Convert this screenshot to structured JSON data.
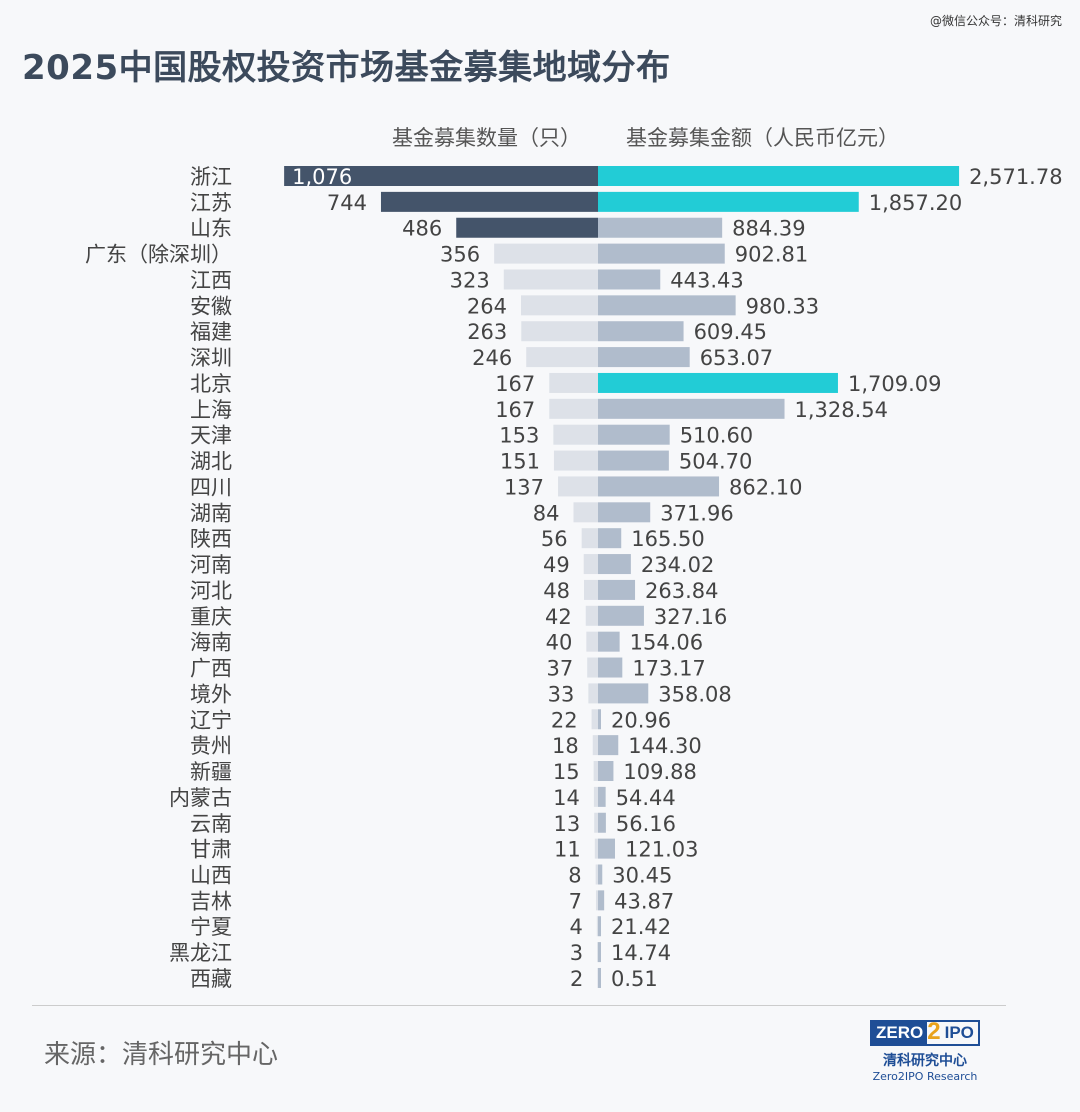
{
  "watermark": "@微信公众号：清科研究",
  "title": "2025中国股权投资市场基金募集地域分布",
  "source": "来源：清科研究中心",
  "logo": {
    "top_left": "ZERO",
    "top_mid": "2",
    "top_right": "IPO",
    "cn": "清科研究中心",
    "en": "Zero2IPO Research"
  },
  "colors": {
    "dark": "#44546a",
    "cyan": "#22ccd6",
    "light_left": "#dde1e8",
    "light_right": "#b0bccc"
  },
  "chart_data": {
    "type": "bar",
    "title": "2025中国股权投资市场基金募集地域分布",
    "left_series_name": "基金募集数量（只）",
    "right_series_name": "基金募集金额（人民币亿元）",
    "categories": [
      "浙江",
      "江苏",
      "山东",
      "广东（除深圳）",
      "江西",
      "安徽",
      "福建",
      "深圳",
      "北京",
      "上海",
      "天津",
      "湖北",
      "四川",
      "湖南",
      "陕西",
      "河南",
      "河北",
      "重庆",
      "海南",
      "广西",
      "境外",
      "辽宁",
      "贵州",
      "新疆",
      "内蒙古",
      "云南",
      "甘肃",
      "山西",
      "吉林",
      "宁夏",
      "黑龙江",
      "西藏"
    ],
    "counts": [
      1076,
      744,
      486,
      356,
      323,
      264,
      263,
      246,
      167,
      167,
      153,
      151,
      137,
      84,
      56,
      49,
      48,
      42,
      40,
      37,
      33,
      22,
      18,
      15,
      14,
      13,
      11,
      8,
      7,
      4,
      3,
      2
    ],
    "count_labels": [
      "1,076",
      "744",
      "486",
      "356",
      "323",
      "264",
      "263",
      "246",
      "167",
      "167",
      "153",
      "151",
      "137",
      "84",
      "56",
      "49",
      "48",
      "42",
      "40",
      "37",
      "33",
      "22",
      "18",
      "15",
      "14",
      "13",
      "11",
      "8",
      "7",
      "4",
      "3",
      "2"
    ],
    "amounts": [
      2571.78,
      1857.2,
      884.39,
      902.81,
      443.43,
      980.33,
      609.45,
      653.07,
      1709.09,
      1328.54,
      510.6,
      504.7,
      862.1,
      371.96,
      165.5,
      234.02,
      263.84,
      327.16,
      154.06,
      173.17,
      358.08,
      20.96,
      144.3,
      109.88,
      54.44,
      56.16,
      121.03,
      30.45,
      43.87,
      21.42,
      14.74,
      0.51
    ],
    "amount_labels": [
      "2,571.78",
      "1,857.20",
      "884.39",
      "902.81",
      "443.43",
      "980.33",
      "609.45",
      "653.07",
      "1,709.09",
      "1,328.54",
      "510.60",
      "504.70",
      "862.10",
      "371.96",
      "165.50",
      "234.02",
      "263.84",
      "327.16",
      "154.06",
      "173.17",
      "358.08",
      "20.96",
      "144.30",
      "109.88",
      "54.44",
      "56.16",
      "121.03",
      "30.45",
      "43.87",
      "21.42",
      "14.74",
      "0.51"
    ],
    "highlight_counts_top": 3,
    "highlight_amounts": [
      "浙江",
      "江苏",
      "北京"
    ]
  }
}
